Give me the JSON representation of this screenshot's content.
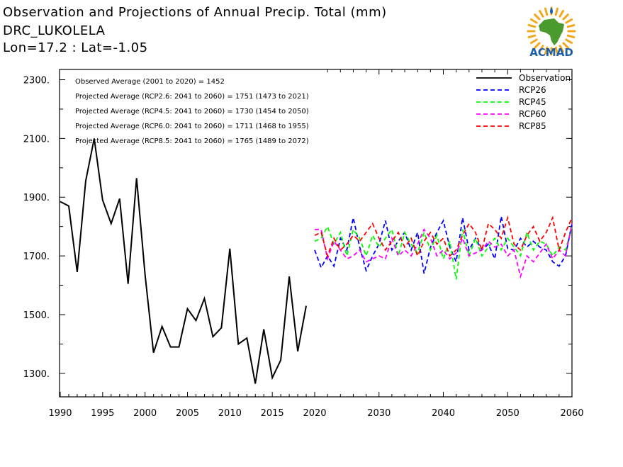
{
  "header": {
    "title": "Observation and Projections of Annual Precip. Total (mm)",
    "station": "DRC_LUKOLELA",
    "coords": "Lon=17.2 : Lat=-1.05"
  },
  "logo": {
    "text": "ACMAD",
    "icon": "africa-map-sun-logo",
    "color_text": "#1a5fa8",
    "color_map": "#4a9a2e",
    "color_sun": "#f2a81d"
  },
  "chart_data": {
    "type": "line",
    "y_ticks": [
      "2300.",
      "2100.",
      "1900.",
      "1700.",
      "1500.",
      "1300."
    ],
    "y_tick_values": [
      2300,
      2100,
      1900,
      1700,
      1500,
      1300
    ],
    "ylim": [
      1220,
      2335
    ],
    "x_ticks_left": [
      "1990",
      "1995",
      "2000",
      "2005",
      "2010",
      "2015",
      "2020"
    ],
    "x_ticks_left_values": [
      1990,
      1995,
      2000,
      2005,
      2010,
      2015,
      2020
    ],
    "x_ticks_right": [
      "2030",
      "2040",
      "2050",
      "2060"
    ],
    "x_ticks_right_values": [
      2030,
      2040,
      2050,
      2060
    ],
    "annotations": [
      "Observed Average (2001 to 2020) = 1452",
      "Projected Average (RCP2.6: 2041 to 2060) = 1751 (1473 to 2021)",
      "Projected Average (RCP4.5: 2041 to 2060) = 1730 (1454 to 2050)",
      "Projected Average (RCP6.0: 2041 to 2060) = 1711 (1468 to 1955)",
      "Projected Average (RCP8.5: 2041 to 2060) = 1765 (1489 to 2072)"
    ],
    "legend": [
      "Observation",
      "RCP26",
      "RCP45",
      "RCP60",
      "RCP85"
    ],
    "colors": {
      "Observation": "#000000",
      "RCP26": "#0000ff",
      "RCP45": "#00ff00",
      "RCP60": "#ff00ff",
      "RCP85": "#ff0000"
    },
    "series": [
      {
        "name": "Observation",
        "x": [
          1990,
          1991,
          1992,
          1993,
          1994,
          1995,
          1996,
          1997,
          1998,
          1999,
          2000,
          2001,
          2002,
          2003,
          2004,
          2005,
          2006,
          2007,
          2008,
          2009,
          2010,
          2011,
          2012,
          2013,
          2014,
          2015,
          2016,
          2017,
          2018,
          2019,
          2020
        ],
        "values": [
          1885,
          1870,
          1645,
          1955,
          2100,
          1890,
          1810,
          1895,
          1605,
          1965,
          1635,
          1370,
          1460,
          1390,
          1390,
          1520,
          1480,
          1555,
          1425,
          1455,
          1725,
          1400,
          1420,
          1265,
          1450,
          1285,
          1345,
          1630,
          1375,
          1530,
          null
        ]
      },
      {
        "name": "RCP26",
        "x": [
          2020,
          2021,
          2022,
          2023,
          2024,
          2025,
          2026,
          2027,
          2028,
          2029,
          2030,
          2031,
          2032,
          2033,
          2034,
          2035,
          2036,
          2037,
          2038,
          2039,
          2040,
          2041,
          2042,
          2043,
          2044,
          2045,
          2046,
          2047,
          2048,
          2049,
          2050,
          2051,
          2052,
          2053,
          2054,
          2055,
          2056,
          2057,
          2058,
          2059,
          2060
        ],
        "values": [
          1720,
          1660,
          1700,
          1665,
          1760,
          1720,
          1830,
          1730,
          1650,
          1700,
          1740,
          1820,
          1720,
          1750,
          1780,
          1720,
          1780,
          1640,
          1730,
          1780,
          1820,
          1730,
          1680,
          1830,
          1720,
          1760,
          1720,
          1740,
          1690,
          1835,
          1725,
          1720,
          1760,
          1730,
          1750,
          1730,
          1720,
          1680,
          1665,
          1700,
          1810
        ]
      },
      {
        "name": "RCP45",
        "x": [
          2020,
          2021,
          2022,
          2023,
          2024,
          2025,
          2026,
          2027,
          2028,
          2029,
          2030,
          2031,
          2032,
          2033,
          2034,
          2035,
          2036,
          2037,
          2038,
          2039,
          2040,
          2041,
          2042,
          2043,
          2044,
          2045,
          2046,
          2047,
          2048,
          2049,
          2050,
          2051,
          2052,
          2053,
          2054,
          2055,
          2056,
          2057,
          2058,
          2059,
          2060
        ],
        "values": [
          1750,
          1760,
          1800,
          1740,
          1780,
          1700,
          1790,
          1760,
          1700,
          1770,
          1730,
          1760,
          1790,
          1700,
          1780,
          1740,
          1710,
          1780,
          1720,
          1770,
          1690,
          1750,
          1620,
          1790,
          1700,
          1760,
          1700,
          1730,
          1760,
          1720,
          1760,
          1730,
          1700,
          1780,
          1720,
          1750,
          1740,
          1700,
          1730,
          1720,
          1800
        ]
      },
      {
        "name": "RCP60",
        "x": [
          2020,
          2021,
          2022,
          2023,
          2024,
          2025,
          2026,
          2027,
          2028,
          2029,
          2030,
          2031,
          2032,
          2033,
          2034,
          2035,
          2036,
          2037,
          2038,
          2039,
          2040,
          2041,
          2042,
          2043,
          2044,
          2045,
          2046,
          2047,
          2048,
          2049,
          2050,
          2051,
          2052,
          2053,
          2054,
          2055,
          2056,
          2057,
          2058,
          2059,
          2060
        ],
        "values": [
          1790,
          1790,
          1690,
          1750,
          1720,
          1690,
          1700,
          1720,
          1680,
          1690,
          1700,
          1690,
          1760,
          1700,
          1720,
          1700,
          1740,
          1790,
          1760,
          1700,
          1720,
          1690,
          1710,
          1760,
          1700,
          1710,
          1720,
          1750,
          1730,
          1740,
          1700,
          1720,
          1630,
          1700,
          1680,
          1710,
          1740,
          1690,
          1720,
          1700,
          1810
        ]
      },
      {
        "name": "RCP85",
        "x": [
          2020,
          2021,
          2022,
          2023,
          2024,
          2025,
          2026,
          2027,
          2028,
          2029,
          2030,
          2031,
          2032,
          2033,
          2034,
          2035,
          2036,
          2037,
          2038,
          2039,
          2040,
          2041,
          2042,
          2043,
          2044,
          2045,
          2046,
          2047,
          2048,
          2049,
          2050,
          2051,
          2052,
          2053,
          2054,
          2055,
          2056,
          2057,
          2058,
          2059,
          2060
        ],
        "values": [
          1770,
          1780,
          1700,
          1760,
          1720,
          1740,
          1770,
          1750,
          1780,
          1810,
          1760,
          1720,
          1750,
          1780,
          1730,
          1760,
          1700,
          1750,
          1780,
          1740,
          1760,
          1700,
          1720,
          1770,
          1810,
          1780,
          1720,
          1810,
          1790,
          1760,
          1830,
          1740,
          1720,
          1770,
          1800,
          1750,
          1780,
          1830,
          1720,
          1780,
          1830
        ]
      }
    ]
  }
}
